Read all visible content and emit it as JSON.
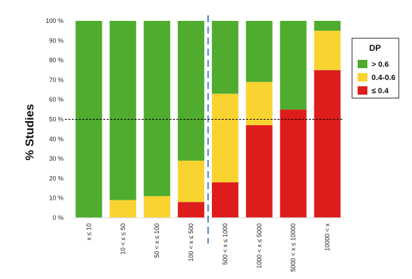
{
  "chart_data": {
    "type": "bar",
    "stacked": true,
    "title": "",
    "xlabel": "",
    "ylabel": "% Studies",
    "ylim": [
      0,
      100
    ],
    "yticks": [
      "0 %",
      "10 %",
      "20 %",
      "30 %",
      "40 %",
      "50 %",
      "60 %",
      "70 %",
      "80 %",
      "90 %",
      "100 %"
    ],
    "categories": [
      "x ≤ 10",
      "10 < x ≤ 50",
      "50 < x ≤ 100",
      "100 < x ≤ 500",
      "500 < x ≤ 1000",
      "1000 < x ≤ 5000",
      "5000 < x ≤ 10000",
      "10000 < x"
    ],
    "series": [
      {
        "name": "≤ 0.4",
        "color": "#dd1c1c",
        "values": [
          0,
          0,
          0,
          8,
          18,
          47,
          55,
          75
        ]
      },
      {
        "name": "0.4-0.6",
        "color": "#f9d330",
        "values": [
          0,
          9,
          11,
          21,
          45,
          22,
          0,
          20
        ]
      },
      {
        "name": "> 0.6",
        "color": "#4fac2f",
        "values": [
          100,
          91,
          89,
          71,
          37,
          31,
          45,
          5
        ]
      }
    ],
    "reference_line": {
      "y": 50,
      "style": "dashed",
      "color": "#000000"
    },
    "divider_after_category": 3,
    "divider_color": "#3e7fc4",
    "legend": {
      "title": "DP",
      "placement": "right",
      "entries": [
        "> 0.6",
        "0.4-0.6",
        "≤ 0.4"
      ]
    },
    "grid": false
  }
}
